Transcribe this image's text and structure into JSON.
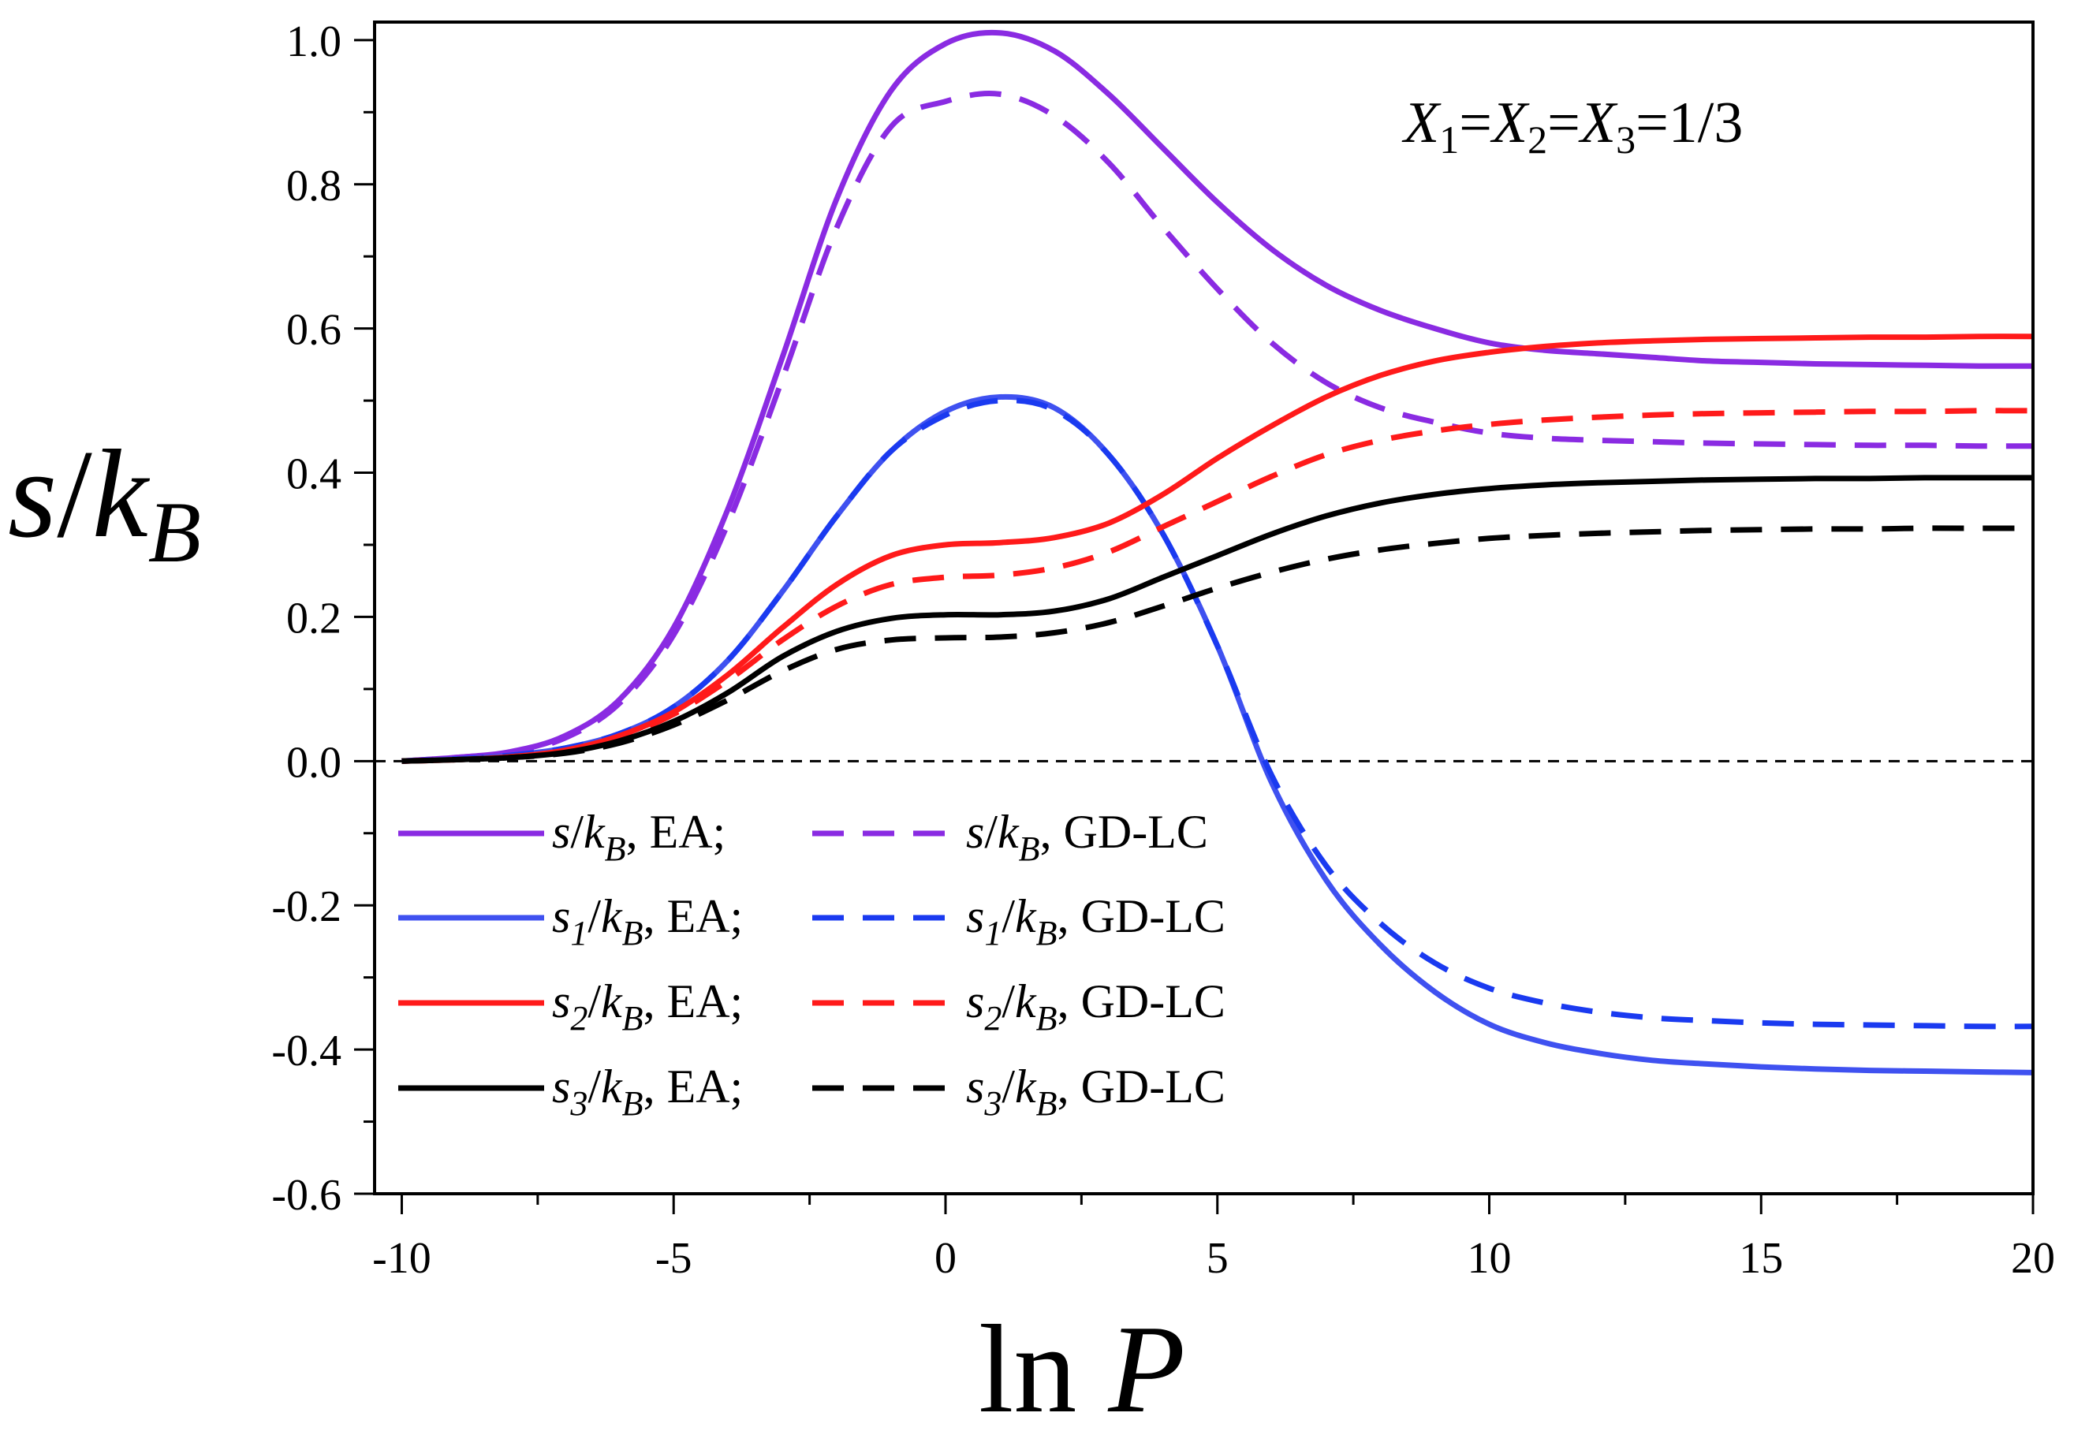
{
  "chart_data": {
    "type": "line",
    "title": "",
    "xlabel": {
      "main": "ln ",
      "italic": "P"
    },
    "ylabel": {
      "italic_s": "s",
      "slash": "/",
      "italic_k": "k",
      "sub": "B"
    },
    "xlim": [
      -10.5,
      20
    ],
    "ylim": [
      -0.6,
      1.025
    ],
    "xticks": [
      -10,
      -5,
      0,
      5,
      10,
      15,
      20
    ],
    "xtick_labels": [
      "-10",
      "-5",
      "0",
      "5",
      "10",
      "15",
      "20"
    ],
    "yticks": [
      -0.6,
      -0.4,
      -0.2,
      0.0,
      0.2,
      0.4,
      0.6,
      0.8,
      1.0
    ],
    "ytick_labels": [
      "-0.6",
      "-0.4",
      "-0.2",
      "0.0",
      "0.2",
      "0.4",
      "0.6",
      "0.8",
      "1.0"
    ],
    "grid": false,
    "reference_line": {
      "y": 0.0,
      "style": "dashed",
      "color": "#000000"
    },
    "annotation": {
      "X1": "X",
      "sub1": "1",
      "eq1": "=",
      "X2": "X",
      "sub2": "2",
      "eq2": "=",
      "X3": "X",
      "sub3": "3",
      "eq3": "=1/3"
    },
    "legend_position": "bottom-left",
    "x": [
      -10,
      -9,
      -8,
      -7,
      -6,
      -5,
      -4,
      -3,
      -2,
      -1,
      0,
      1,
      2,
      3,
      4,
      5,
      6,
      7,
      8,
      9,
      10,
      11,
      12,
      13,
      14,
      15,
      16,
      17,
      18,
      19,
      20
    ],
    "series": [
      {
        "name": "s/kB, EA",
        "color": "#8a2be2",
        "dash": false,
        "legend": {
          "s": "s",
          "k": "k",
          "sub": "B",
          "suffix": ", EA;"
        },
        "values": [
          0.0,
          0.005,
          0.013,
          0.035,
          0.085,
          0.185,
          0.35,
          0.56,
          0.78,
          0.93,
          0.995,
          1.01,
          0.985,
          0.925,
          0.85,
          0.775,
          0.71,
          0.66,
          0.625,
          0.6,
          0.58,
          0.57,
          0.565,
          0.56,
          0.555,
          0.553,
          0.551,
          0.55,
          0.549,
          0.548,
          0.548
        ]
      },
      {
        "name": "s/kB, GD-LC",
        "color": "#8a2be2",
        "dash": true,
        "legend": {
          "s": "s",
          "k": "k",
          "sub": "B",
          "suffix": ", GD-LC"
        },
        "values": [
          0.0,
          0.005,
          0.012,
          0.032,
          0.08,
          0.175,
          0.33,
          0.53,
          0.74,
          0.88,
          0.915,
          0.925,
          0.895,
          0.83,
          0.74,
          0.655,
          0.58,
          0.525,
          0.49,
          0.47,
          0.455,
          0.448,
          0.445,
          0.443,
          0.441,
          0.44,
          0.439,
          0.438,
          0.438,
          0.437,
          0.437
        ]
      },
      {
        "name": "s1/kB, EA",
        "color": "#3f51f0",
        "dash": false,
        "legend": {
          "s": "s",
          "ssub": "1",
          "k": "k",
          "sub": "B",
          "suffix": ", EA;"
        },
        "values": [
          0.0,
          0.003,
          0.008,
          0.018,
          0.038,
          0.075,
          0.14,
          0.235,
          0.34,
          0.43,
          0.485,
          0.505,
          0.49,
          0.425,
          0.315,
          0.16,
          -0.03,
          -0.165,
          -0.255,
          -0.32,
          -0.365,
          -0.39,
          -0.405,
          -0.415,
          -0.42,
          -0.424,
          -0.427,
          -0.429,
          -0.43,
          -0.431,
          -0.432
        ]
      },
      {
        "name": "s1/kB, GD-LC",
        "color": "#1a3af0",
        "dash": true,
        "legend": {
          "s": "s",
          "ssub": "1",
          "k": "k",
          "sub": "B",
          "suffix": ", GD-LC"
        },
        "values": [
          0.0,
          0.003,
          0.008,
          0.018,
          0.038,
          0.075,
          0.14,
          0.235,
          0.34,
          0.43,
          0.48,
          0.5,
          0.487,
          0.425,
          0.315,
          0.16,
          -0.02,
          -0.145,
          -0.225,
          -0.28,
          -0.315,
          -0.335,
          -0.348,
          -0.356,
          -0.36,
          -0.363,
          -0.365,
          -0.366,
          -0.367,
          -0.368,
          -0.368
        ]
      },
      {
        "name": "s2/kB, EA",
        "color": "#ff1a1a",
        "dash": false,
        "legend": {
          "s": "s",
          "ssub": "2",
          "k": "k",
          "sub": "B",
          "suffix": ", EA;"
        },
        "values": [
          0.0,
          0.002,
          0.006,
          0.015,
          0.035,
          0.068,
          0.12,
          0.185,
          0.245,
          0.285,
          0.3,
          0.303,
          0.31,
          0.33,
          0.37,
          0.42,
          0.465,
          0.505,
          0.535,
          0.555,
          0.567,
          0.575,
          0.58,
          0.583,
          0.585,
          0.586,
          0.587,
          0.588,
          0.588,
          0.589,
          0.589
        ]
      },
      {
        "name": "s2/kB, GD-LC",
        "color": "#ff1a1a",
        "dash": true,
        "legend": {
          "s": "s",
          "ssub": "2",
          "k": "k",
          "sub": "B",
          "suffix": ", GD-LC"
        },
        "values": [
          0.0,
          0.002,
          0.006,
          0.014,
          0.033,
          0.065,
          0.112,
          0.168,
          0.215,
          0.245,
          0.255,
          0.258,
          0.268,
          0.29,
          0.325,
          0.36,
          0.395,
          0.425,
          0.445,
          0.458,
          0.467,
          0.473,
          0.477,
          0.48,
          0.482,
          0.483,
          0.484,
          0.485,
          0.485,
          0.486,
          0.486
        ]
      },
      {
        "name": "s3/kB, EA",
        "color": "#000000",
        "dash": false,
        "legend": {
          "s": "s",
          "ssub": "3",
          "k": "k",
          "sub": "B",
          "suffix": ", EA;"
        },
        "values": [
          0.0,
          0.002,
          0.005,
          0.012,
          0.028,
          0.055,
          0.095,
          0.145,
          0.18,
          0.198,
          0.203,
          0.203,
          0.208,
          0.225,
          0.255,
          0.285,
          0.315,
          0.34,
          0.358,
          0.37,
          0.378,
          0.383,
          0.386,
          0.388,
          0.39,
          0.391,
          0.392,
          0.392,
          0.393,
          0.393,
          0.393
        ]
      },
      {
        "name": "s3/kB, GD-LC",
        "color": "#000000",
        "dash": true,
        "legend": {
          "s": "s",
          "ssub": "3",
          "k": "k",
          "sub": "B",
          "suffix": ", GD-LC"
        },
        "values": [
          0.0,
          0.002,
          0.005,
          0.011,
          0.025,
          0.05,
          0.085,
          0.125,
          0.155,
          0.168,
          0.171,
          0.172,
          0.178,
          0.192,
          0.215,
          0.24,
          0.262,
          0.28,
          0.293,
          0.302,
          0.309,
          0.313,
          0.316,
          0.318,
          0.32,
          0.321,
          0.322,
          0.322,
          0.323,
          0.323,
          0.323
        ]
      }
    ]
  }
}
